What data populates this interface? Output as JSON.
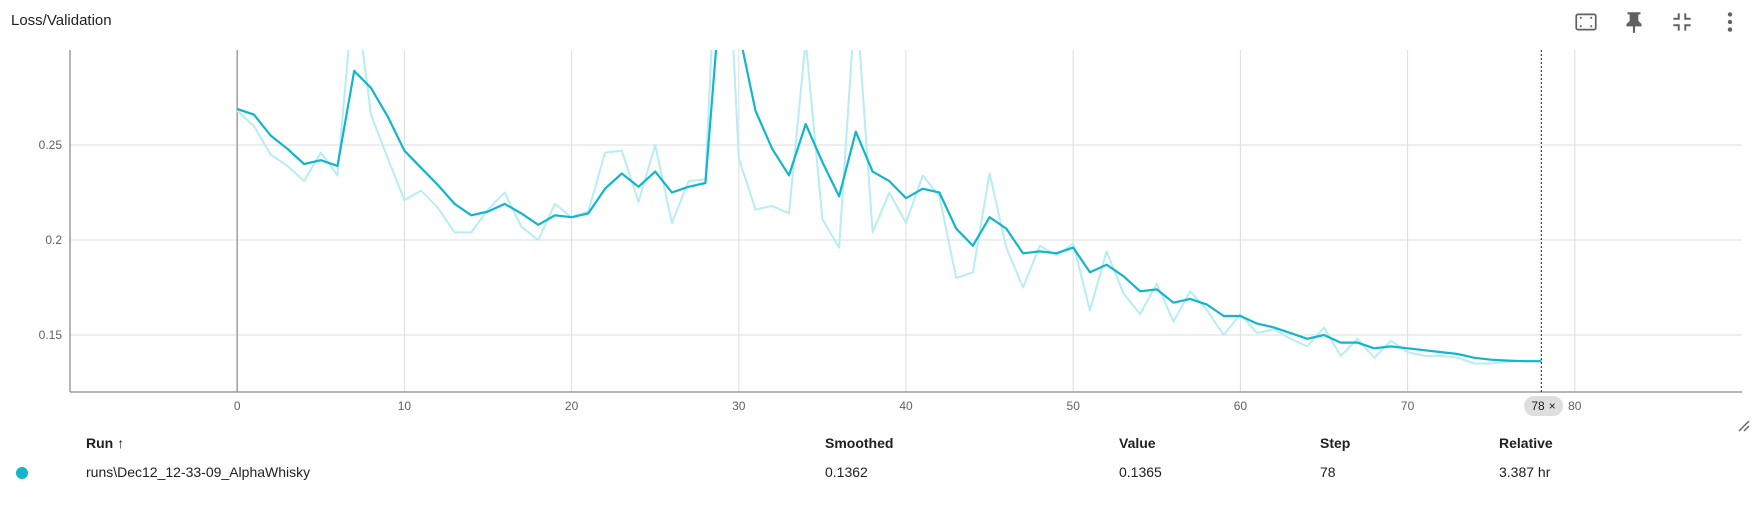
{
  "card": {
    "title": "Loss/Validation"
  },
  "toolbar": {
    "icons": [
      "fit-domain-icon",
      "pin-icon",
      "collapse-icon",
      "more-vert-icon"
    ]
  },
  "colors": {
    "smoothed": "#12b5cb",
    "raw": "#b7edf3",
    "grid": "#dddddd",
    "axis": "#9e9e9e"
  },
  "chart_data": {
    "type": "line",
    "title": "Loss/Validation",
    "xlabel": "",
    "ylabel": "",
    "xlim": [
      -10,
      90
    ],
    "ylim": [
      0.12,
      0.3
    ],
    "xticks": [
      0,
      10,
      20,
      30,
      40,
      50,
      60,
      70,
      80
    ],
    "yticks": [
      0.15,
      0.2,
      0.25
    ],
    "ytick_labels": [
      "0.15",
      "0.2",
      "0.25"
    ],
    "grid": true,
    "series": [
      {
        "role": "smoothed",
        "x": [
          0,
          1,
          2,
          3,
          4,
          5,
          6,
          7,
          8,
          9,
          10,
          11,
          12,
          13,
          14,
          15,
          16,
          17,
          18,
          19,
          20,
          21,
          22,
          23,
          24,
          25,
          26,
          27,
          28,
          29,
          30,
          31,
          32,
          33,
          34,
          35,
          36,
          37,
          38,
          39,
          40,
          41,
          42,
          43,
          44,
          45,
          46,
          47,
          48,
          49,
          50,
          51,
          52,
          53,
          54,
          55,
          56,
          57,
          58,
          59,
          60,
          61,
          62,
          63,
          64,
          65,
          66,
          67,
          68,
          69,
          70,
          71,
          72,
          73,
          74,
          75,
          76,
          77,
          78
        ],
        "y": [
          0.269,
          0.266,
          0.255,
          0.248,
          0.24,
          0.242,
          0.239,
          0.289,
          0.28,
          0.265,
          0.247,
          0.238,
          0.229,
          0.219,
          0.213,
          0.215,
          0.219,
          0.214,
          0.208,
          0.213,
          0.212,
          0.214,
          0.227,
          0.235,
          0.228,
          0.236,
          0.225,
          0.228,
          0.23,
          0.34,
          0.31,
          0.268,
          0.248,
          0.234,
          0.261,
          0.241,
          0.223,
          0.257,
          0.236,
          0.231,
          0.222,
          0.227,
          0.225,
          0.206,
          0.197,
          0.212,
          0.206,
          0.193,
          0.194,
          0.193,
          0.196,
          0.183,
          0.187,
          0.181,
          0.173,
          0.174,
          0.167,
          0.169,
          0.166,
          0.16,
          0.16,
          0.156,
          0.154,
          0.151,
          0.148,
          0.15,
          0.146,
          0.146,
          0.143,
          0.144,
          0.143,
          0.142,
          0.141,
          0.14,
          0.138,
          0.137,
          0.1365,
          0.1362,
          0.1362
        ]
      },
      {
        "role": "raw",
        "x": [
          0,
          1,
          2,
          3,
          4,
          5,
          6,
          7,
          8,
          9,
          10,
          11,
          12,
          13,
          14,
          15,
          16,
          17,
          18,
          19,
          20,
          21,
          22,
          23,
          24,
          25,
          26,
          27,
          28,
          29,
          30,
          31,
          32,
          33,
          34,
          35,
          36,
          37,
          38,
          39,
          40,
          41,
          42,
          43,
          44,
          45,
          46,
          47,
          48,
          49,
          50,
          51,
          52,
          53,
          54,
          55,
          56,
          57,
          58,
          59,
          60,
          61,
          62,
          63,
          64,
          65,
          66,
          67,
          68,
          69,
          70,
          71,
          72,
          73,
          74,
          75,
          76,
          77,
          78
        ],
        "y": [
          0.268,
          0.26,
          0.245,
          0.239,
          0.231,
          0.246,
          0.234,
          0.335,
          0.266,
          0.243,
          0.221,
          0.226,
          0.217,
          0.204,
          0.204,
          0.216,
          0.225,
          0.207,
          0.2,
          0.219,
          0.212,
          0.215,
          0.246,
          0.247,
          0.22,
          0.25,
          0.209,
          0.231,
          0.232,
          0.42,
          0.243,
          0.216,
          0.218,
          0.214,
          0.305,
          0.211,
          0.196,
          0.33,
          0.204,
          0.225,
          0.209,
          0.234,
          0.223,
          0.18,
          0.183,
          0.235,
          0.196,
          0.175,
          0.197,
          0.192,
          0.198,
          0.163,
          0.194,
          0.172,
          0.161,
          0.177,
          0.157,
          0.173,
          0.163,
          0.15,
          0.161,
          0.151,
          0.153,
          0.148,
          0.144,
          0.154,
          0.139,
          0.148,
          0.138,
          0.147,
          0.141,
          0.139,
          0.139,
          0.138,
          0.135,
          0.135,
          0.136,
          0.1365,
          0.1365
        ]
      }
    ],
    "hover_step": 78
  },
  "hover": {
    "step_chip": "78",
    "close": "×"
  },
  "table": {
    "headers": {
      "run": "Run",
      "sort": "↑",
      "smoothed": "Smoothed",
      "value": "Value",
      "step": "Step",
      "relative": "Relative"
    },
    "row": {
      "run": "runs\\Dec12_12-33-09_AlphaWhisky",
      "smoothed": "0.1362",
      "value": "0.1365",
      "step": "78",
      "relative": "3.387 hr",
      "color": "#12b5cb"
    }
  }
}
